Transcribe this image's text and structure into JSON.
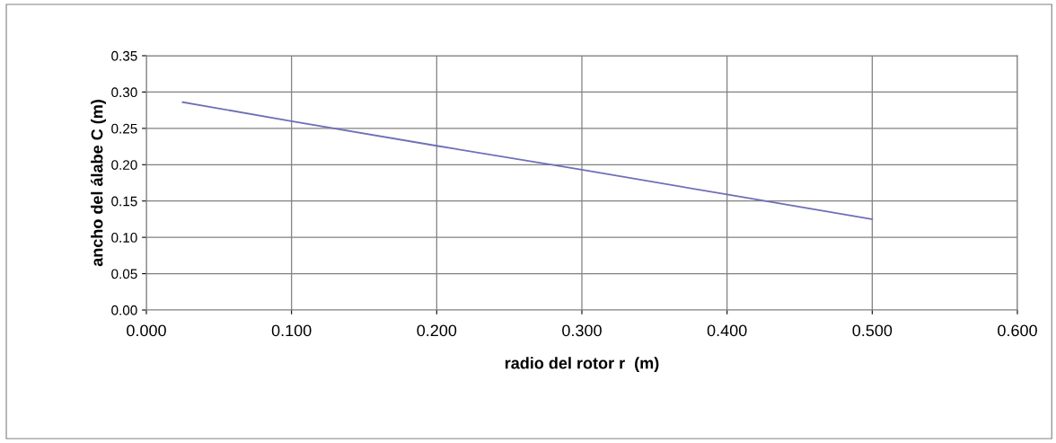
{
  "chart_data": {
    "type": "line",
    "xlabel": "radio del rotor r  (m)",
    "ylabel": "ancho del álabe C (m)",
    "x": [
      0.025,
      0.1,
      0.2,
      0.3,
      0.4,
      0.5
    ],
    "series": [
      {
        "color": "#6f6fb8",
        "values": [
          0.286,
          0.26,
          0.226,
          0.193,
          0.159,
          0.125
        ]
      }
    ],
    "xlim": [
      0,
      0.6
    ],
    "ylim": [
      0,
      0.35
    ],
    "xticks": [
      {
        "value": 0,
        "label": "0.000"
      },
      {
        "value": 0.1,
        "label": "0.100"
      },
      {
        "value": 0.2,
        "label": "0.200"
      },
      {
        "value": 0.3,
        "label": "0.300"
      },
      {
        "value": 0.4,
        "label": "0.400"
      },
      {
        "value": 0.5,
        "label": "0.500"
      },
      {
        "value": 0.6,
        "label": "0.600"
      }
    ],
    "yticks": [
      {
        "value": 0,
        "label": "0.00"
      },
      {
        "value": 0.05,
        "label": "0.05"
      },
      {
        "value": 0.1,
        "label": "0.10"
      },
      {
        "value": 0.15,
        "label": "0.15"
      },
      {
        "value": 0.2,
        "label": "0.20"
      },
      {
        "value": 0.25,
        "label": "0.25"
      },
      {
        "value": 0.3,
        "label": "0.30"
      },
      {
        "value": 0.35,
        "label": "0.35"
      }
    ],
    "grid": true,
    "marker": "none",
    "line_style": "solid"
  }
}
